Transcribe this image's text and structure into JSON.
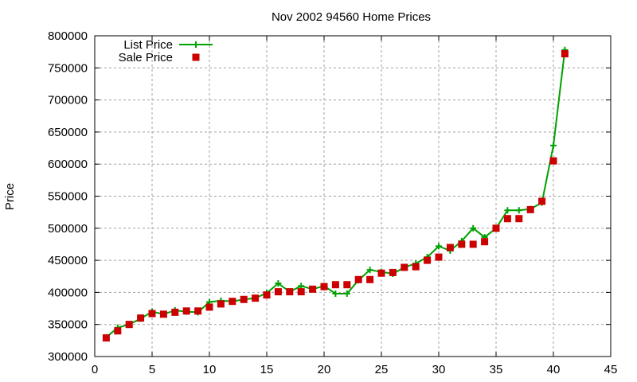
{
  "chart_data": {
    "type": "line",
    "title": "Nov 2002 94560 Home Prices",
    "xlabel": "",
    "ylabel": "Price",
    "xlim": [
      0,
      45
    ],
    "ylim": [
      300000,
      800000
    ],
    "xticks": [
      0,
      5,
      10,
      15,
      20,
      25,
      30,
      35,
      40,
      45
    ],
    "yticks": [
      300000,
      350000,
      400000,
      450000,
      500000,
      550000,
      600000,
      650000,
      700000,
      750000,
      800000
    ],
    "grid": true,
    "legend_position": "top-left",
    "x": [
      1,
      2,
      3,
      4,
      5,
      6,
      7,
      8,
      9,
      10,
      11,
      12,
      13,
      14,
      15,
      16,
      17,
      18,
      19,
      20,
      21,
      22,
      23,
      24,
      25,
      26,
      27,
      28,
      29,
      30,
      31,
      32,
      33,
      34,
      35,
      36,
      37,
      38,
      39,
      40,
      41
    ],
    "series": [
      {
        "name": "List Price",
        "style": "linespoints",
        "color": "#00a000",
        "values": [
          330000,
          345000,
          350000,
          359000,
          370000,
          366000,
          372000,
          370000,
          369000,
          385000,
          387000,
          386000,
          389000,
          391000,
          399000,
          414000,
          401000,
          410000,
          405000,
          410000,
          398000,
          398000,
          419000,
          435000,
          432000,
          429000,
          439000,
          445000,
          455000,
          472000,
          465000,
          480000,
          500000,
          486000,
          500000,
          528000,
          528000,
          530000,
          540000,
          629000,
          778000
        ]
      },
      {
        "name": "Sale Price",
        "style": "points",
        "color": "#cc0000",
        "values": [
          329000,
          340000,
          350000,
          360000,
          367000,
          366000,
          369000,
          371000,
          371000,
          377000,
          382000,
          386000,
          389000,
          391000,
          396000,
          401000,
          401000,
          401000,
          405000,
          409000,
          412000,
          412000,
          420000,
          420000,
          430000,
          431000,
          439000,
          440000,
          450000,
          455000,
          470000,
          475000,
          475000,
          479000,
          500000,
          515000,
          515000,
          529000,
          542000,
          605000,
          772000
        ]
      }
    ]
  }
}
